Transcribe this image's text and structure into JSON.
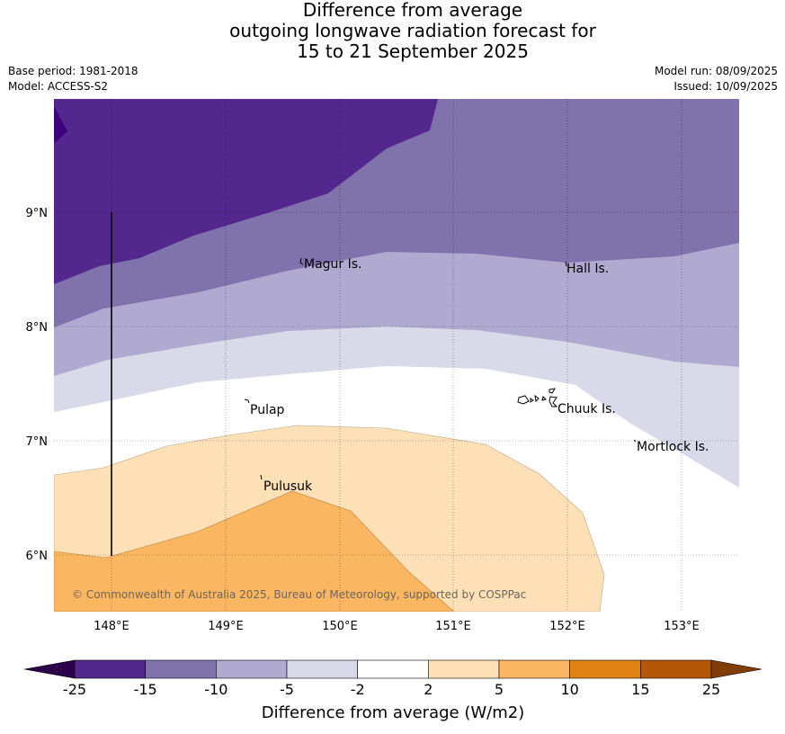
{
  "header": {
    "title_line1": "Difference from average",
    "title_line2": "outgoing longwave radiation forecast for",
    "title_line3": "15 to 21 September 2025",
    "base_period": "Base period: 1981-2018",
    "model": "Model: ACCESS-S2",
    "model_run": "Model run: 08/09/2025",
    "issued": "Issued: 10/09/2025"
  },
  "map": {
    "lon_labels": [
      "148°E",
      "149°E",
      "150°E",
      "151°E",
      "152°E",
      "153°E"
    ],
    "lat_labels": [
      "9°N",
      "8°N",
      "7°N",
      "6°N"
    ],
    "places": [
      {
        "key": "magur",
        "label": "Magur Is."
      },
      {
        "key": "hall",
        "label": "Hall Is."
      },
      {
        "key": "pulap",
        "label": "Pulap"
      },
      {
        "key": "chuuk",
        "label": "Chuuk Is."
      },
      {
        "key": "mortlock",
        "label": "Mortlock Is."
      },
      {
        "key": "pulusuk",
        "label": "Pulusuk"
      }
    ],
    "copyright": "© Commonwealth of Australia 2025, Bureau of Meteorology, supported by COSPPac",
    "shading_colors": {
      "lt_-15": "#54278f",
      "-15_to_-10": "#7f72ad",
      "-10_to_-5": "#b0aad1",
      "-5_to_-2": "#d9d9e9",
      "-2_to_2": "#ffffff",
      "2_to_5": "#fde0b6",
      "5_to_10": "#fbb662",
      "lt_-25": "#3f007d"
    }
  },
  "colorbar": {
    "ticks": [
      "-25",
      "-15",
      "-10",
      "-5",
      "-2",
      "2",
      "5",
      "10",
      "15",
      "25"
    ],
    "label": "Difference from average (W/m2)",
    "colors": [
      "#54278f",
      "#7f72ad",
      "#b0aad1",
      "#d9d9e9",
      "#ffffff",
      "#fde0b6",
      "#fbb662",
      "#e08214",
      "#b35806"
    ],
    "low_extend_color": "#2d004b",
    "high_extend_color": "#7f3b08"
  }
}
